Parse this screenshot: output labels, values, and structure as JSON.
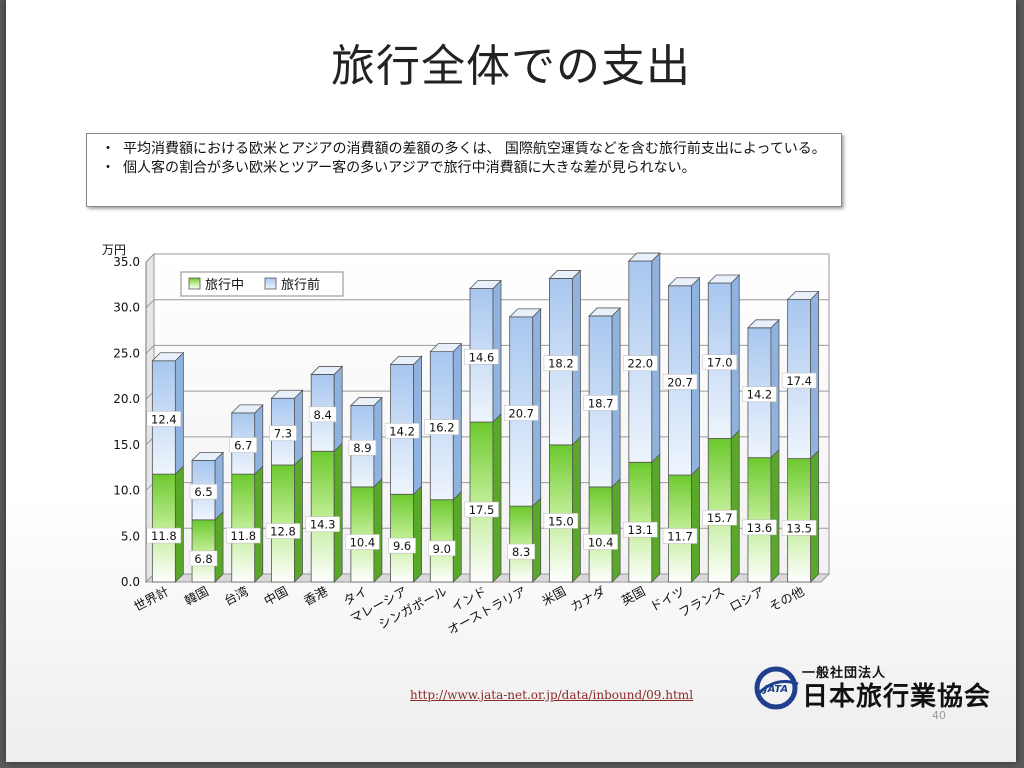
{
  "slide": {
    "title": "旅行全体での支出",
    "notes": [
      {
        "bullet": "・",
        "text": "平均消費額における欧米とアジアの消費額の差額の多くは、 国際航空運賃などを含む旅行前支出によっている。"
      },
      {
        "bullet": "・",
        "text": " 個人客の割合が多い欧米とツアー客の多いアジアで旅行中消費額に大きな差が見られない。"
      }
    ],
    "url": "http://www.jata-net.or.jp/data/inbound/09.html",
    "logo_small": "一般社団法人",
    "logo_big": "日本旅行業協会",
    "logo_badge": "JATA",
    "slide_number": "40"
  },
  "chart_data": {
    "type": "bar",
    "stacked": true,
    "unit_label": "万円",
    "ylim": [
      0,
      35
    ],
    "yticks": [
      "0.0",
      "5.0",
      "10.0",
      "15.0",
      "20.0",
      "25.0",
      "30.0",
      "35.0"
    ],
    "grid": true,
    "legend_position": "top-left",
    "categories": [
      "世界計",
      "韓国",
      "台湾",
      "中国",
      "香港",
      "タイ",
      "マレーシア",
      "シンガポール",
      "インド",
      "オーストラリア",
      "米国",
      "カナダ",
      "英国",
      "ドイツ",
      "フランス",
      "ロシア",
      "その他"
    ],
    "series": [
      {
        "name": "旅行中",
        "color": "#7fd13b",
        "values": [
          11.8,
          6.8,
          11.8,
          12.8,
          14.3,
          10.4,
          9.6,
          9.0,
          17.5,
          8.3,
          15.0,
          10.4,
          13.1,
          11.7,
          15.7,
          13.6,
          13.5
        ]
      },
      {
        "name": "旅行前",
        "color": "#a9c8f0",
        "values": [
          12.4,
          6.5,
          6.7,
          7.3,
          8.4,
          8.9,
          14.2,
          16.2,
          14.6,
          20.7,
          18.2,
          18.7,
          22.0,
          20.7,
          17.0,
          14.2,
          17.4
        ]
      }
    ],
    "data_labels": [
      [
        "11.8",
        "6.8",
        "11.8",
        "12.8",
        "14.3",
        "10.4",
        "9.6",
        "9.0",
        "17.5",
        "8.3",
        "15.0",
        "10.4",
        "13.1",
        "11.7",
        "15.7",
        "13.6",
        "13.5"
      ],
      [
        "12.4",
        "6.5",
        "6.7",
        "7.3",
        "8.4",
        "8.9",
        "14.2",
        "16.2",
        "14.6",
        "20.7",
        "18.2",
        "18.7",
        "22.0",
        "20.7",
        "17.0",
        "14.2",
        "17.4"
      ]
    ]
  }
}
